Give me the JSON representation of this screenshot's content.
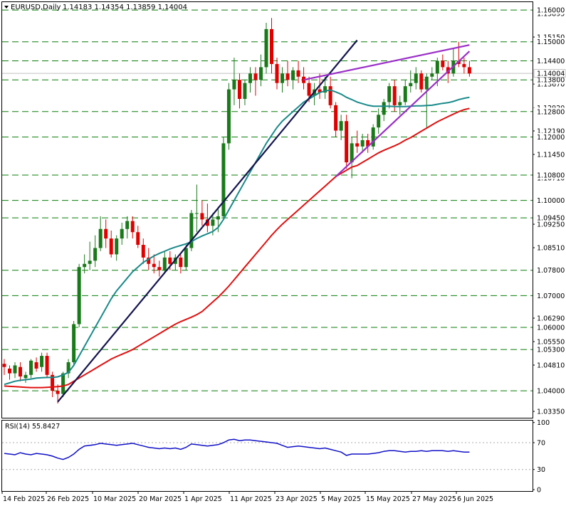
{
  "header": {
    "symbol": "EURUSD,Daily",
    "ohlc": "1.14183 1.14354 1.13859 1.14004"
  },
  "rsi": {
    "label": "RSI(14) 55.8427",
    "ticks": [
      "100",
      "70",
      "30",
      "0"
    ],
    "tick_values": [
      100,
      70,
      30,
      0
    ]
  },
  "price_axis": {
    "ticks": [
      "1.15895",
      "1.15150",
      "1.13670",
      "1.12920",
      "1.12190",
      "1.11450",
      "1.10710",
      "1.09250",
      "1.08510",
      "1.06290",
      "1.05550",
      "1.04810",
      "1.03350"
    ],
    "tick_values": [
      1.15895,
      1.1515,
      1.1367,
      1.1292,
      1.1219,
      1.1145,
      1.1071,
      1.0925,
      1.0851,
      1.0629,
      1.0555,
      1.0481,
      1.0335
    ],
    "current_price": "1.14004"
  },
  "x_axis": {
    "labels": [
      "14 Feb 2025",
      "26 Feb 2025",
      "10 Mar 2025",
      "20 Mar 2025",
      "1 Apr 2025",
      "11 Apr 2025",
      "23 Apr 2025",
      "5 May 2025",
      "15 May 2025",
      "27 May 2025",
      "6 Jun 2025"
    ]
  },
  "levels": [
    {
      "label": "1.16000",
      "value": 1.16
    },
    {
      "label": "1.15000",
      "value": 1.15
    },
    {
      "label": "1.14400",
      "value": 1.144
    },
    {
      "label": "1.13800",
      "value": 1.138
    },
    {
      "label": "1.12800",
      "value": 1.128
    },
    {
      "label": "1.12000",
      "value": 1.12
    },
    {
      "label": "1.10800",
      "value": 1.108
    },
    {
      "label": "1.10000",
      "value": 1.1
    },
    {
      "label": "1.09450",
      "value": 1.0945
    },
    {
      "label": "1.07800",
      "value": 1.078
    },
    {
      "label": "1.07000",
      "value": 1.07
    },
    {
      "label": "1.06000",
      "value": 1.06
    },
    {
      "label": "1.05300",
      "value": 1.053
    },
    {
      "label": "1.04000",
      "value": 1.04
    }
  ],
  "colors": {
    "up": "#1a7a1a",
    "down": "#e00000",
    "level": "#0a7d0a",
    "ma_fast": "#1a8a8a",
    "ma_slow": "#e01010",
    "trend_navy": "#141450",
    "channel": "#9b2fc8",
    "rsi_line": "#1010c8"
  },
  "chart_data": {
    "type": "candlestick",
    "title": "EURUSD,Daily",
    "ylim": [
      1.0315,
      1.1625
    ],
    "start_date": "2025-02-14",
    "indicators": [
      "moving average (teal)",
      "moving average (red)",
      "RSI(14)"
    ],
    "candles": [
      [
        1.0485,
        1.05,
        1.045,
        1.0475
      ],
      [
        1.047,
        1.048,
        1.0435,
        1.0455
      ],
      [
        1.0455,
        1.049,
        1.044,
        1.048
      ],
      [
        1.0475,
        1.049,
        1.043,
        1.0445
      ],
      [
        1.044,
        1.046,
        1.0425,
        1.045
      ],
      [
        1.045,
        1.05,
        1.044,
        1.0495
      ],
      [
        1.049,
        1.0505,
        1.046,
        1.047
      ],
      [
        1.0475,
        1.052,
        1.046,
        1.051
      ],
      [
        1.051,
        1.052,
        1.044,
        1.045
      ],
      [
        1.045,
        1.046,
        1.038,
        1.04
      ],
      [
        1.04,
        1.042,
        1.036,
        1.039
      ],
      [
        1.039,
        1.046,
        1.038,
        1.0455
      ],
      [
        1.0455,
        1.05,
        1.044,
        1.049
      ],
      [
        1.049,
        1.062,
        1.048,
        1.061
      ],
      [
        1.061,
        1.08,
        1.06,
        1.079
      ],
      [
        1.079,
        1.083,
        1.077,
        1.08
      ],
      [
        1.08,
        1.087,
        1.078,
        1.081
      ],
      [
        1.081,
        1.089,
        1.079,
        1.085
      ],
      [
        1.085,
        1.095,
        1.084,
        1.091
      ],
      [
        1.091,
        1.094,
        1.085,
        1.088
      ],
      [
        1.088,
        1.0905,
        1.082,
        1.083
      ],
      [
        1.083,
        1.089,
        1.081,
        1.088
      ],
      [
        1.088,
        1.093,
        1.086,
        1.091
      ],
      [
        1.091,
        1.095,
        1.088,
        1.0935
      ],
      [
        1.0935,
        1.095,
        1.088,
        1.09
      ],
      [
        1.09,
        1.092,
        1.085,
        1.086
      ],
      [
        1.086,
        1.088,
        1.08,
        1.082
      ],
      [
        1.082,
        1.085,
        1.078,
        1.08
      ],
      [
        1.08,
        1.083,
        1.077,
        1.079
      ],
      [
        1.079,
        1.081,
        1.076,
        1.078
      ],
      [
        1.078,
        1.084,
        1.077,
        1.082
      ],
      [
        1.082,
        1.084,
        1.078,
        1.08
      ],
      [
        1.08,
        1.083,
        1.078,
        1.082
      ],
      [
        1.082,
        1.083,
        1.077,
        1.079
      ],
      [
        1.079,
        1.086,
        1.078,
        1.085
      ],
      [
        1.085,
        1.097,
        1.084,
        1.096
      ],
      [
        1.096,
        1.105,
        1.09,
        1.096
      ],
      [
        1.096,
        1.1,
        1.092,
        1.094
      ],
      [
        1.094,
        1.099,
        1.09,
        1.092
      ],
      [
        1.092,
        1.096,
        1.089,
        1.094
      ],
      [
        1.094,
        1.098,
        1.09,
        1.095
      ],
      [
        1.095,
        1.12,
        1.094,
        1.118
      ],
      [
        1.118,
        1.137,
        1.116,
        1.135
      ],
      [
        1.135,
        1.145,
        1.13,
        1.138
      ],
      [
        1.138,
        1.14,
        1.129,
        1.132
      ],
      [
        1.132,
        1.138,
        1.13,
        1.137
      ],
      [
        1.137,
        1.142,
        1.134,
        1.14
      ],
      [
        1.14,
        1.142,
        1.133,
        1.138
      ],
      [
        1.138,
        1.146,
        1.136,
        1.142
      ],
      [
        1.142,
        1.156,
        1.14,
        1.154
      ],
      [
        1.154,
        1.1575,
        1.14,
        1.143
      ],
      [
        1.143,
        1.145,
        1.135,
        1.137
      ],
      [
        1.137,
        1.142,
        1.134,
        1.14
      ],
      [
        1.14,
        1.144,
        1.136,
        1.138
      ],
      [
        1.138,
        1.142,
        1.135,
        1.141
      ],
      [
        1.141,
        1.144,
        1.137,
        1.139
      ],
      [
        1.139,
        1.142,
        1.135,
        1.137
      ],
      [
        1.137,
        1.139,
        1.131,
        1.133
      ],
      [
        1.133,
        1.137,
        1.13,
        1.135
      ],
      [
        1.135,
        1.14,
        1.132,
        1.134
      ],
      [
        1.134,
        1.139,
        1.132,
        1.136
      ],
      [
        1.136,
        1.139,
        1.129,
        1.13
      ],
      [
        1.13,
        1.131,
        1.12,
        1.122
      ],
      [
        1.122,
        1.127,
        1.119,
        1.125
      ],
      [
        1.125,
        1.127,
        1.11,
        1.112
      ],
      [
        1.112,
        1.12,
        1.107,
        1.118
      ],
      [
        1.118,
        1.122,
        1.115,
        1.117
      ],
      [
        1.117,
        1.121,
        1.115,
        1.119
      ],
      [
        1.119,
        1.121,
        1.115,
        1.117
      ],
      [
        1.117,
        1.124,
        1.116,
        1.123
      ],
      [
        1.123,
        1.129,
        1.121,
        1.127
      ],
      [
        1.127,
        1.132,
        1.125,
        1.131
      ],
      [
        1.131,
        1.137,
        1.129,
        1.136
      ],
      [
        1.136,
        1.138,
        1.128,
        1.13
      ],
      [
        1.13,
        1.133,
        1.127,
        1.131
      ],
      [
        1.131,
        1.138,
        1.13,
        1.136
      ],
      [
        1.136,
        1.141,
        1.134,
        1.137
      ],
      [
        1.137,
        1.142,
        1.135,
        1.14
      ],
      [
        1.14,
        1.141,
        1.134,
        1.135
      ],
      [
        1.135,
        1.14,
        1.123,
        1.139
      ],
      [
        1.139,
        1.142,
        1.138,
        1.14
      ],
      [
        1.14,
        1.145,
        1.136,
        1.144
      ],
      [
        1.144,
        1.146,
        1.141,
        1.142
      ],
      [
        1.142,
        1.144,
        1.137,
        1.14
      ],
      [
        1.14,
        1.148,
        1.139,
        1.144
      ],
      [
        1.144,
        1.15,
        1.142,
        1.143
      ],
      [
        1.143,
        1.145,
        1.14,
        1.142
      ],
      [
        1.142,
        1.144,
        1.139,
        1.14
      ]
    ],
    "ma_fast": [
      1.042,
      1.0425,
      1.043,
      1.0433,
      1.0435,
      1.0437,
      1.044,
      1.0441,
      1.0442,
      1.0442,
      1.0444,
      1.045,
      1.0458,
      1.048,
      1.051,
      1.054,
      1.057,
      1.06,
      1.063,
      1.066,
      1.069,
      1.0715,
      1.0735,
      1.0755,
      1.0775,
      1.079,
      1.0805,
      1.0815,
      1.0825,
      1.0833,
      1.084,
      1.0847,
      1.0853,
      1.0858,
      1.0863,
      1.087,
      1.088,
      1.0888,
      1.0895,
      1.0902,
      1.0915,
      1.094,
      1.097,
      1.1,
      1.103,
      1.106,
      1.109,
      1.112,
      1.115,
      1.118,
      1.1205,
      1.123,
      1.125,
      1.1265,
      1.128,
      1.1295,
      1.131,
      1.132,
      1.133,
      1.134,
      1.1345,
      1.1348,
      1.1342,
      1.1335,
      1.1325,
      1.1318,
      1.131,
      1.1305,
      1.13,
      1.1297,
      1.1297,
      1.1297,
      1.1297,
      1.1296,
      1.1296,
      1.1296,
      1.1297,
      1.1298,
      1.1298,
      1.1299,
      1.13,
      1.1303,
      1.1306,
      1.1308,
      1.1312,
      1.1318,
      1.1322,
      1.1325
    ],
    "ma_slow": [
      1.0415,
      1.0414,
      1.0413,
      1.0412,
      1.0411,
      1.041,
      1.041,
      1.041,
      1.0411,
      1.0412,
      1.0413,
      1.0415,
      1.042,
      1.043,
      1.044,
      1.045,
      1.046,
      1.047,
      1.048,
      1.049,
      1.05,
      1.0508,
      1.0515,
      1.0522,
      1.053,
      1.054,
      1.055,
      1.056,
      1.057,
      1.058,
      1.059,
      1.06,
      1.061,
      1.0618,
      1.0625,
      1.0632,
      1.064,
      1.065,
      1.0665,
      1.068,
      1.0695,
      1.0712,
      1.073,
      1.075,
      1.077,
      1.079,
      1.081,
      1.083,
      1.085,
      1.087,
      1.089,
      1.0908,
      1.0925,
      1.094,
      1.0955,
      1.097,
      1.0985,
      1.1,
      1.1015,
      1.103,
      1.1045,
      1.106,
      1.1075,
      1.1085,
      1.1095,
      1.1105,
      1.111,
      1.112,
      1.113,
      1.114,
      1.115,
      1.1158,
      1.1165,
      1.1172,
      1.118,
      1.119,
      1.1198,
      1.1208,
      1.1218,
      1.1228,
      1.1238,
      1.1248,
      1.1256,
      1.1264,
      1.1272,
      1.128,
      1.1286,
      1.129
    ],
    "trendlines": [
      {
        "name": "rising support",
        "from": [
          10,
          1.0365
        ],
        "to": [
          66,
          1.1505
        ]
      },
      {
        "name": "channel top",
        "from": [
          56,
          1.138
        ],
        "to": [
          87,
          1.149
        ]
      },
      {
        "name": "channel bottom",
        "from": [
          62,
          1.1075
        ],
        "to": [
          87,
          1.147
        ]
      }
    ],
    "rsi_values": [
      54,
      53,
      52,
      55,
      53,
      52,
      54,
      53,
      52,
      50,
      47,
      45,
      48,
      53,
      60,
      65,
      66,
      67,
      69,
      68,
      67,
      66,
      67,
      68,
      69,
      67,
      65,
      63,
      62,
      61,
      62,
      61,
      62,
      60,
      63,
      68,
      67,
      66,
      65,
      66,
      67,
      70,
      74,
      75,
      73,
      74,
      74,
      73,
      72,
      71,
      70,
      69,
      66,
      63,
      64,
      65,
      64,
      63,
      62,
      61,
      62,
      60,
      58,
      56,
      51,
      53,
      53,
      53,
      53,
      54,
      55,
      57,
      58,
      58,
      57,
      56,
      57,
      57,
      58,
      57,
      58,
      58,
      58,
      57,
      58,
      57,
      56,
      56
    ]
  }
}
